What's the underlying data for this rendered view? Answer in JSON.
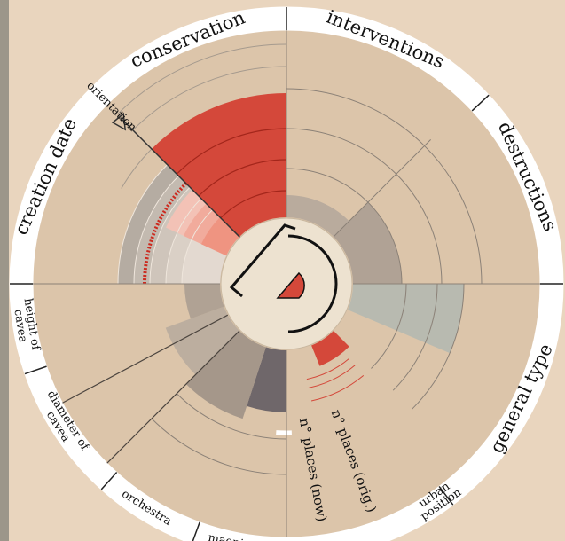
{
  "labels": {
    "conservation": "conservation",
    "interventions": "interventions",
    "destructions": "destructions",
    "general_type": "general type",
    "urban_position": [
      "urban",
      "position"
    ],
    "places_orig": "n° places (orig.)",
    "places_now": "n° places (now)",
    "maeniana": "maeniana",
    "orchestra": "orchestra",
    "diameter_of_cavea": [
      "diameter of",
      "cavea"
    ],
    "height_of_cavea": [
      "height of",
      "cavea"
    ],
    "creation_date": "creation date",
    "orientation": "orientation"
  }
}
